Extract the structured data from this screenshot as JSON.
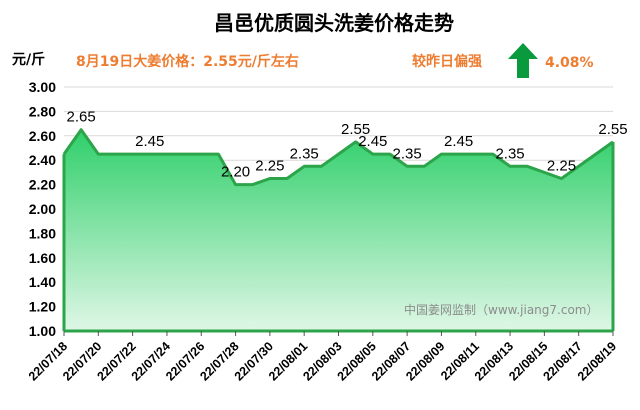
{
  "header": {
    "title": "昌邑优质圆头洗姜价格走势",
    "unit": "元/斤",
    "price_note": "8月19日大姜价格：2.55元/斤左右",
    "compare_label": "较昨日偏强",
    "change_percent": "4.08%",
    "trend_icon": "up-arrow-icon"
  },
  "watermark": "中国姜网监制（www.jiang7.com）",
  "colors": {
    "line": "#2ca44a",
    "fill_top": "#2fcf6a",
    "fill_bottom": "#dff7e6",
    "arrow": "#0a9a3e",
    "note": "#ed7d31"
  },
  "chart_data": {
    "type": "area",
    "title": "昌邑优质圆头洗姜价格走势",
    "ylabel": "元/斤",
    "xlabel": "",
    "ylim": [
      1.0,
      3.0
    ],
    "ytick_step": 0.2,
    "grid": true,
    "x_tick_labels": [
      "22/07/18",
      "22/07/20",
      "22/07/22",
      "22/07/24",
      "22/07/26",
      "22/07/28",
      "22/07/30",
      "22/08/01",
      "22/08/03",
      "22/08/05",
      "22/08/07",
      "22/08/09",
      "22/08/11",
      "22/08/13",
      "22/08/15",
      "22/08/17",
      "22/08/19"
    ],
    "series": [
      {
        "points": [
          {
            "x": "2022-07-18",
            "y": 2.45
          },
          {
            "x": "2022-07-19",
            "y": 2.65
          },
          {
            "x": "2022-07-20",
            "y": 2.45
          },
          {
            "x": "2022-07-27",
            "y": 2.45
          },
          {
            "x": "2022-07-28",
            "y": 2.2
          },
          {
            "x": "2022-07-29",
            "y": 2.2
          },
          {
            "x": "2022-07-30",
            "y": 2.25
          },
          {
            "x": "2022-07-31",
            "y": 2.25
          },
          {
            "x": "2022-08-01",
            "y": 2.35
          },
          {
            "x": "2022-08-02",
            "y": 2.35
          },
          {
            "x": "2022-08-04",
            "y": 2.55
          },
          {
            "x": "2022-08-05",
            "y": 2.45
          },
          {
            "x": "2022-08-06",
            "y": 2.45
          },
          {
            "x": "2022-08-07",
            "y": 2.35
          },
          {
            "x": "2022-08-08",
            "y": 2.35
          },
          {
            "x": "2022-08-09",
            "y": 2.45
          },
          {
            "x": "2022-08-12",
            "y": 2.45
          },
          {
            "x": "2022-08-13",
            "y": 2.35
          },
          {
            "x": "2022-08-14",
            "y": 2.35
          },
          {
            "x": "2022-08-16",
            "y": 2.25
          },
          {
            "x": "2022-08-19",
            "y": 2.55
          }
        ]
      }
    ],
    "data_labels": [
      {
        "x": "2022-07-19",
        "y": 2.65,
        "text": "2.65"
      },
      {
        "x": "2022-07-23",
        "y": 2.45,
        "text": "2.45"
      },
      {
        "x": "2022-07-28",
        "y": 2.2,
        "text": "2.20"
      },
      {
        "x": "2022-07-30",
        "y": 2.25,
        "text": "2.25"
      },
      {
        "x": "2022-08-01",
        "y": 2.35,
        "text": "2.35"
      },
      {
        "x": "2022-08-04",
        "y": 2.55,
        "text": "2.55"
      },
      {
        "x": "2022-08-05",
        "y": 2.45,
        "text": "2.45"
      },
      {
        "x": "2022-08-07",
        "y": 2.35,
        "text": "2.35"
      },
      {
        "x": "2022-08-10",
        "y": 2.45,
        "text": "2.45"
      },
      {
        "x": "2022-08-13",
        "y": 2.35,
        "text": "2.35"
      },
      {
        "x": "2022-08-16",
        "y": 2.25,
        "text": "2.25"
      },
      {
        "x": "2022-08-19",
        "y": 2.55,
        "text": "2.55"
      }
    ]
  }
}
